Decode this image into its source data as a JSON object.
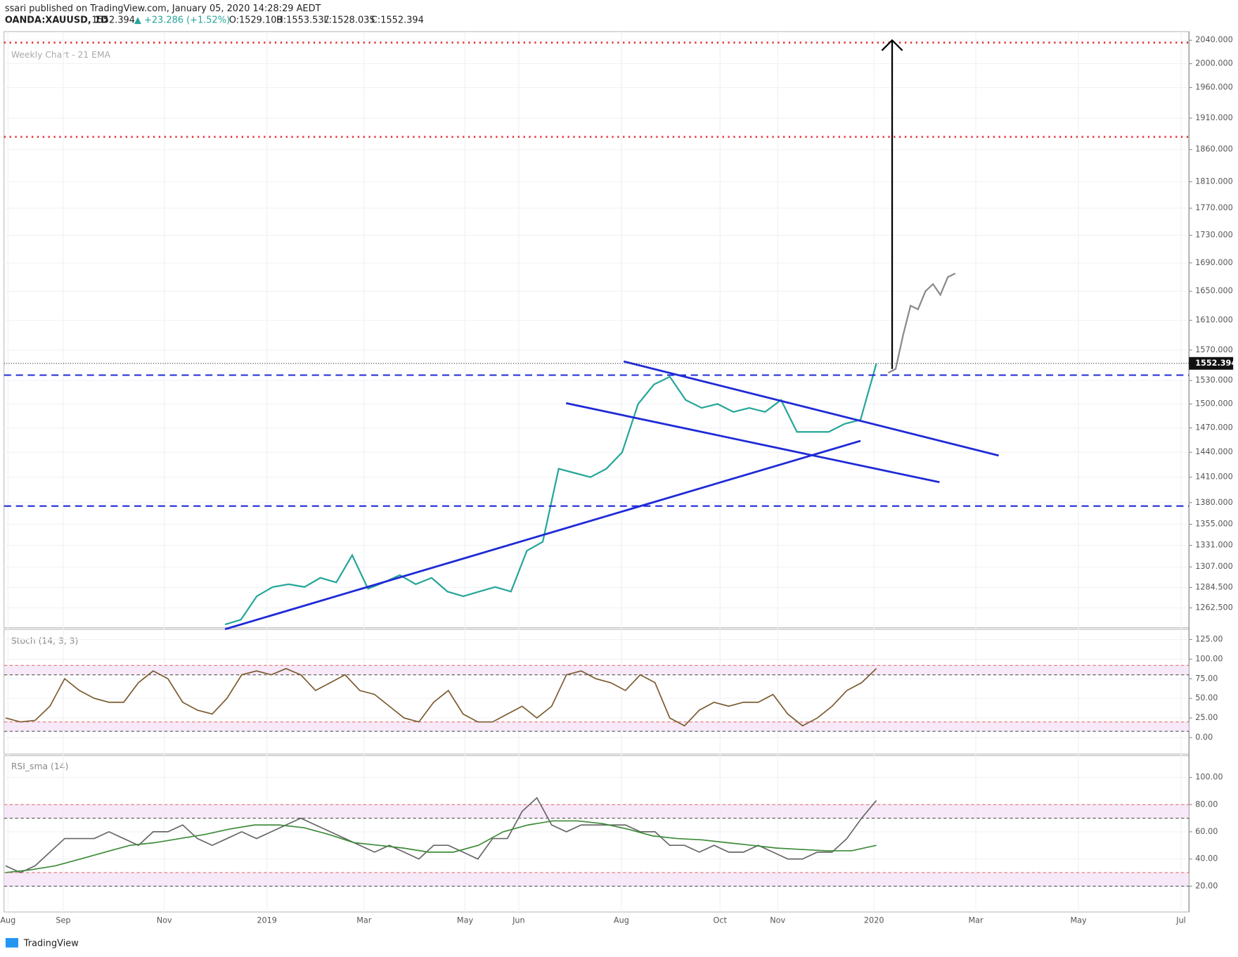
{
  "header": {
    "published": "ssari published on TradingView.com, January 05, 2020 14:28:29 AEDT",
    "symbol": "OANDA:XAUUSD, 1D",
    "last": "1552.394",
    "change": "▲ +23.286 (+1.52%)",
    "open": "O:1529.108",
    "high": "H:1553.537",
    "low": "L:1528.035",
    "close": "C:1552.394"
  },
  "footer": "TradingView",
  "chart_data": [
    {
      "type": "line",
      "subtitle": "Weekly Chart - 21 EMA",
      "log_scale": true,
      "ylim": [
        1241.5,
        2055
      ],
      "yticks": [
        {
          "value": 2040,
          "label": "2040.000"
        },
        {
          "value": 2000,
          "label": "2000.000"
        },
        {
          "value": 1960,
          "label": "1960.000"
        },
        {
          "value": 1910,
          "label": "1910.000"
        },
        {
          "value": 1860,
          "label": "1860.000"
        },
        {
          "value": 1810,
          "label": "1810.000"
        },
        {
          "value": 1770,
          "label": "1770.000"
        },
        {
          "value": 1730,
          "label": "1730.000"
        },
        {
          "value": 1690,
          "label": "1690.000"
        },
        {
          "value": 1650,
          "label": "1650.000"
        },
        {
          "value": 1610,
          "label": "1610.000"
        },
        {
          "value": 1570,
          "label": "1570.000"
        },
        {
          "value": 1530,
          "label": "1530.000"
        },
        {
          "value": 1500,
          "label": "1500.000"
        },
        {
          "value": 1470,
          "label": "1470.000"
        },
        {
          "value": 1440,
          "label": "1440.000"
        },
        {
          "value": 1410,
          "label": "1410.000"
        },
        {
          "value": 1380,
          "label": "1380.000"
        },
        {
          "value": 1355,
          "label": "1355.000"
        },
        {
          "value": 1331,
          "label": "1331.000"
        },
        {
          "value": 1307,
          "label": "1307.000"
        },
        {
          "value": 1284.5,
          "label": "1284.500"
        },
        {
          "value": 1262.5,
          "label": "1262.500"
        }
      ],
      "xtick_labels": [
        "Aug",
        "Sep",
        "Nov",
        "2019",
        "Mar",
        "May",
        "Jun",
        "Aug",
        "Oct",
        "Nov",
        "2020",
        "Mar",
        "May",
        "Jul"
      ],
      "grid": true,
      "series": [
        {
          "color": "#26a69a",
          "values": [
            1245,
            1250,
            1275,
            1285,
            1288,
            1285,
            1295,
            1290,
            1320,
            1283,
            1290,
            1298,
            1288,
            1295,
            1280,
            1275,
            1280,
            1285,
            1280,
            1325,
            1335,
            1420,
            1415,
            1410,
            1420,
            1440,
            1500,
            1525,
            1535,
            1505,
            1495,
            1500,
            1490,
            1495,
            1490,
            1505,
            1465,
            1465,
            1465,
            1475,
            1480,
            1552
          ]
        },
        {
          "color": "#8a8a8a",
          "values": [
            1540,
            1545,
            1590,
            1630,
            1625,
            1650,
            1660,
            1645,
            1670,
            1675
          ]
        }
      ],
      "last_price": 1552.394,
      "levels": [
        {
          "value": 2036,
          "color": "#e53935",
          "style": "dotted"
        },
        {
          "value": 1880,
          "color": "#e53935",
          "style": "dotted"
        },
        {
          "value": 1537,
          "color": "#1e2ad6",
          "style": "dashed"
        },
        {
          "value": 1376,
          "color": "#1e2ad6",
          "style": "dashed"
        }
      ],
      "trendlines": [
        [
          1555,
          1436
        ],
        [
          1501,
          1404
        ],
        [
          1240,
          1454
        ]
      ],
      "arrow": [
        1545,
        2040
      ]
    },
    {
      "type": "line",
      "title": "Stoch (14, 3, 3)",
      "ylim": [
        -21,
        138
      ],
      "yticks": [
        {
          "value": 125,
          "label": "125.00"
        },
        {
          "value": 100,
          "label": "100.00"
        },
        {
          "value": 75,
          "label": "75.00"
        },
        {
          "value": 50,
          "label": "50.00"
        },
        {
          "value": 25,
          "label": "25.00"
        },
        {
          "value": 0,
          "label": "0.00"
        }
      ],
      "bands": [
        [
          80,
          92
        ],
        [
          8,
          20
        ]
      ],
      "series": [
        {
          "color": "#7b5a2e",
          "values": [
            25,
            20,
            22,
            40,
            75,
            60,
            50,
            45,
            45,
            70,
            85,
            75,
            45,
            35,
            30,
            50,
            80,
            85,
            80,
            88,
            80,
            60,
            70,
            80,
            60,
            55,
            40,
            25,
            20,
            45,
            60,
            30,
            20,
            20,
            30,
            40,
            25,
            40,
            80,
            85,
            75,
            70,
            60,
            80,
            70,
            25,
            15,
            35,
            45,
            40,
            45,
            45,
            55,
            30,
            15,
            25,
            40,
            60,
            70,
            88
          ]
        }
      ]
    },
    {
      "type": "line",
      "title": "RSI_sma (14)",
      "ylim": [
        1,
        116
      ],
      "yticks": [
        {
          "value": 100,
          "label": "100.00"
        },
        {
          "value": 80,
          "label": "80.00"
        },
        {
          "value": 60,
          "label": "60.00"
        },
        {
          "value": 40,
          "label": "40.00"
        },
        {
          "value": 20,
          "label": "20.00"
        }
      ],
      "bands": [
        [
          70,
          80
        ],
        [
          20,
          30
        ]
      ],
      "series": [
        {
          "color": "#666666",
          "values": [
            35,
            30,
            35,
            45,
            55,
            55,
            55,
            60,
            55,
            50,
            60,
            60,
            65,
            55,
            50,
            55,
            60,
            55,
            60,
            65,
            70,
            65,
            60,
            55,
            50,
            45,
            50,
            45,
            40,
            50,
            50,
            45,
            40,
            55,
            55,
            75,
            85,
            65,
            60,
            65,
            65,
            65,
            65,
            60,
            60,
            50,
            50,
            45,
            50,
            45,
            45,
            50,
            45,
            40,
            40,
            45,
            45,
            55,
            70,
            83
          ]
        },
        {
          "color": "#3d8b37",
          "values": [
            30,
            32,
            35,
            40,
            45,
            50,
            52,
            55,
            58,
            62,
            65,
            65,
            63,
            58,
            52,
            50,
            48,
            45,
            45,
            50,
            60,
            65,
            68,
            68,
            66,
            62,
            57,
            55,
            54,
            52,
            50,
            48,
            47,
            46,
            46,
            50
          ]
        }
      ]
    }
  ]
}
